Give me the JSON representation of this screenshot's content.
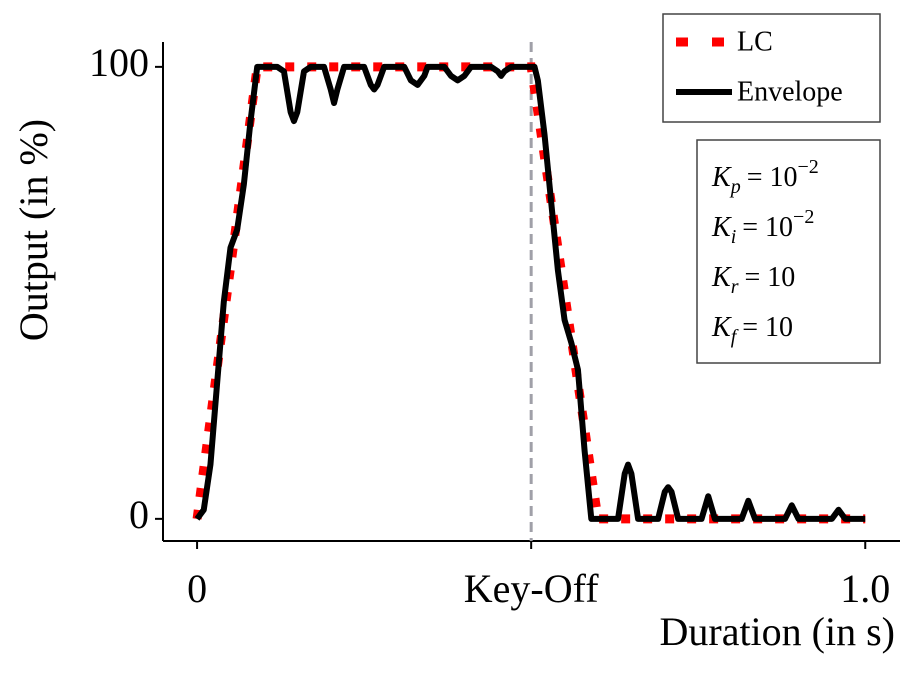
{
  "chart_data": {
    "type": "line",
    "xlabel": "Duration (in s)",
    "ylabel": "Output (in %)",
    "xlim": [
      -0.051,
      1.052
    ],
    "ylim": [
      -4.9,
      105.5
    ],
    "xticks": [
      0,
      {
        "value": 0.5,
        "label": "Key-Off"
      },
      {
        "value": 1,
        "label": "1.0"
      }
    ],
    "yticks": [
      0,
      100
    ],
    "vline": 0.5,
    "legend": "upper right",
    "series": [
      {
        "name": "LC",
        "color": "#ff0000",
        "style": "dotted",
        "x": [
          0,
          0.09,
          0.5,
          0.6,
          1.0
        ],
        "values": [
          0,
          100,
          100,
          0,
          0
        ]
      },
      {
        "name": "Envelope",
        "color": "#000000",
        "style": "solid",
        "x": [
          0,
          0.01,
          0.02,
          0.03,
          0.04,
          0.05,
          0.06,
          0.07,
          0.08,
          0.09,
          0.12,
          0.13,
          0.14,
          0.145,
          0.15,
          0.16,
          0.17,
          0.19,
          0.2,
          0.205,
          0.21,
          0.22,
          0.25,
          0.26,
          0.265,
          0.27,
          0.28,
          0.31,
          0.32,
          0.33,
          0.34,
          0.345,
          0.37,
          0.38,
          0.39,
          0.4,
          0.41,
          0.44,
          0.45,
          0.455,
          0.46,
          0.47,
          0.505,
          0.51,
          0.52,
          0.53,
          0.54,
          0.55,
          0.56,
          0.57,
          0.58,
          0.59,
          0.63,
          0.64,
          0.645,
          0.65,
          0.66,
          0.69,
          0.7,
          0.705,
          0.71,
          0.72,
          0.755,
          0.765,
          0.775,
          0.815,
          0.825,
          0.835,
          0.88,
          0.89,
          0.9,
          0.95,
          0.96,
          0.97,
          1.0
        ],
        "values": [
          0,
          2,
          12,
          30,
          48,
          60,
          64,
          74,
          88,
          100,
          100,
          99,
          90,
          88,
          90,
          99,
          100,
          100,
          95,
          92,
          95,
          100,
          100,
          96,
          95,
          96,
          100,
          100,
          97,
          96,
          98,
          100,
          100,
          98,
          97,
          98,
          100,
          100,
          99,
          98,
          99,
          100,
          100,
          97,
          85,
          70,
          55,
          44,
          39,
          33,
          15,
          0,
          0,
          10,
          12,
          10,
          0,
          0,
          6,
          7,
          6,
          0,
          0,
          5,
          0,
          0,
          4,
          0,
          0,
          3,
          0,
          0,
          2,
          0,
          0
        ]
      }
    ],
    "annotations": [
      {
        "var": "K",
        "sub": "p",
        "rhs": "= 10",
        "exp": "−2"
      },
      {
        "var": "K",
        "sub": "i",
        "rhs": "= 10",
        "exp": "−2"
      },
      {
        "var": "K",
        "sub": "r",
        "rhs": "= 10"
      },
      {
        "var": "K",
        "sub": "f",
        "rhs": "= 10"
      }
    ]
  }
}
